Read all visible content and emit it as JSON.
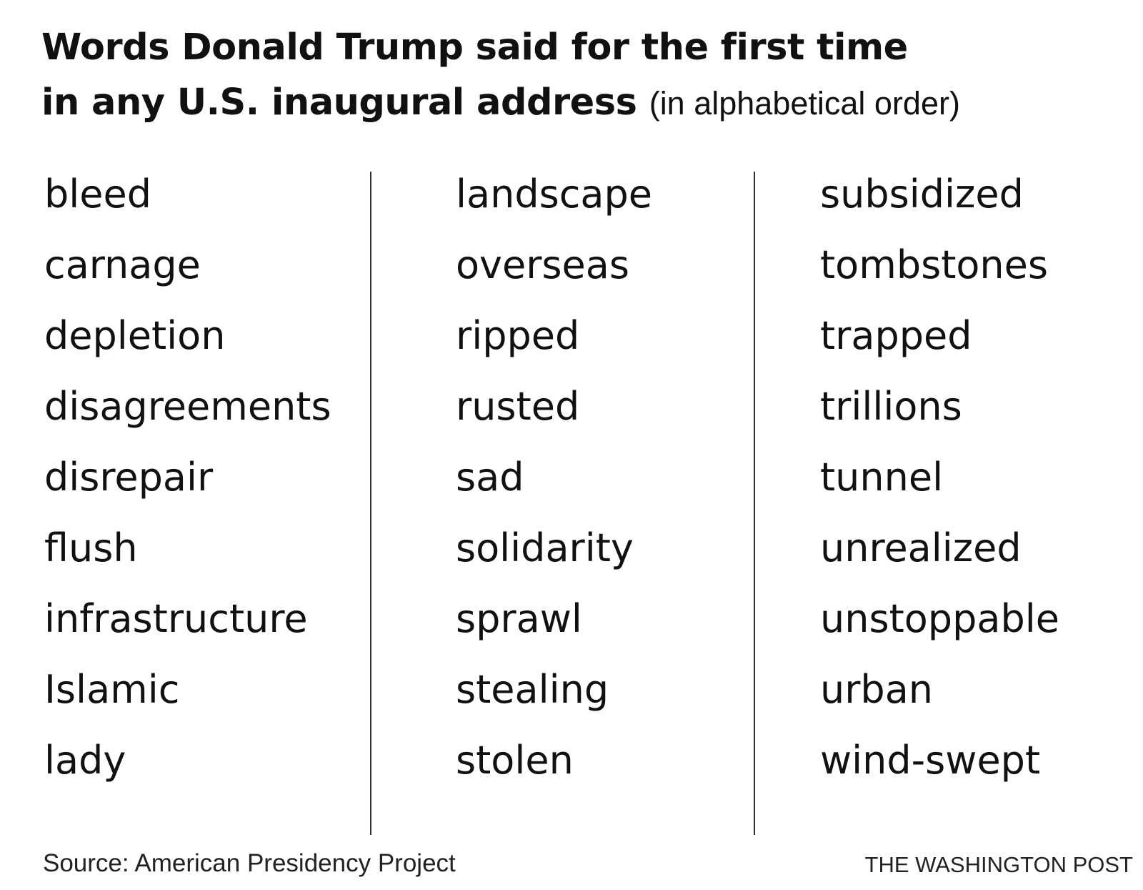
{
  "header": {
    "title_line1": "Words Donald Trump said for the first time",
    "title_line2": "in any U.S. inaugural address",
    "subtitle": "(in alphabetical order)"
  },
  "columns": [
    [
      "bleed",
      "carnage",
      "depletion",
      "disagreements",
      "disrepair",
      "flush",
      "infrastructure",
      "Islamic",
      "lady"
    ],
    [
      "landscape",
      "overseas",
      "ripped",
      "rusted",
      "sad",
      "solidarity",
      "sprawl",
      "stealing",
      "stolen"
    ],
    [
      "subsidized",
      "tombstones",
      "trapped",
      "trillions",
      "tunnel",
      "unrealized",
      "unstoppable",
      "urban",
      "wind-swept"
    ]
  ],
  "footer": {
    "source": "Source: American Presidency Project",
    "credit": "THE WASHINGTON POST"
  }
}
